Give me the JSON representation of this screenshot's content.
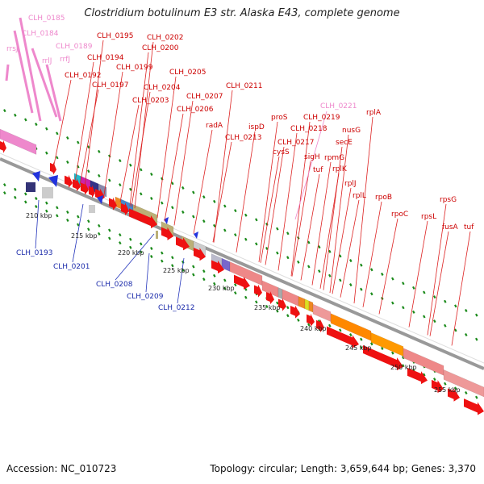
{
  "title": "Clostridium botulinum E3 str. Alaska E43, complete genome",
  "footer": {
    "accession": "Accession: NC_010723",
    "summary": "Topology: circular; Length: 3,659,644 bp; Genes: 3,370"
  },
  "colors": {
    "forward_cds": "#ee1111",
    "reverse_cds": "#1111ee",
    "rna": "#ee88cc",
    "forward_label": "#cc0000",
    "reverse_label": "#1a2aaa",
    "rna_label": "#ee88cc",
    "backbone": "#999999",
    "tick": "#1a8a1a"
  },
  "scale_labels": [
    "210 kbp",
    "215 kbp",
    "220 kbp",
    "225 kbp",
    "230 kbp",
    "235 kbp",
    "240 kbp",
    "245 kbp",
    "250 kbp",
    "255 kbp"
  ],
  "forward_labels": [
    "CLH_0195",
    "CLH_0202",
    "CLH_0194",
    "CLH_0200",
    "CLH_0192",
    "CLH_0199",
    "CLH_0205",
    "CLH_0197",
    "CLH_0204",
    "CLH_0211",
    "CLH_0203",
    "CLH_0207",
    "CLH_0206",
    "proS",
    "radA",
    "ispD",
    "CLH_0213",
    "CLH_0219",
    "CLH_0218",
    "CLH_0217",
    "cysS",
    "sigH",
    "rpmG",
    "tuf",
    "rplK",
    "rplJ",
    "rplL",
    "rpoB",
    "rpoC",
    "rplA",
    "nusG",
    "secE",
    "rpsG",
    "rpsL",
    "fusA",
    "tuf"
  ],
  "rna_labels": [
    "CLH_0185",
    "CLH_0184",
    "rrsJ",
    "CLH_0189",
    "rrlJ",
    "rrfJ",
    "CLH_0221"
  ],
  "reverse_labels": [
    "CLH_0193",
    "CLH_0201",
    "CLH_0208",
    "CLH_0209",
    "CLH_0212"
  ]
}
